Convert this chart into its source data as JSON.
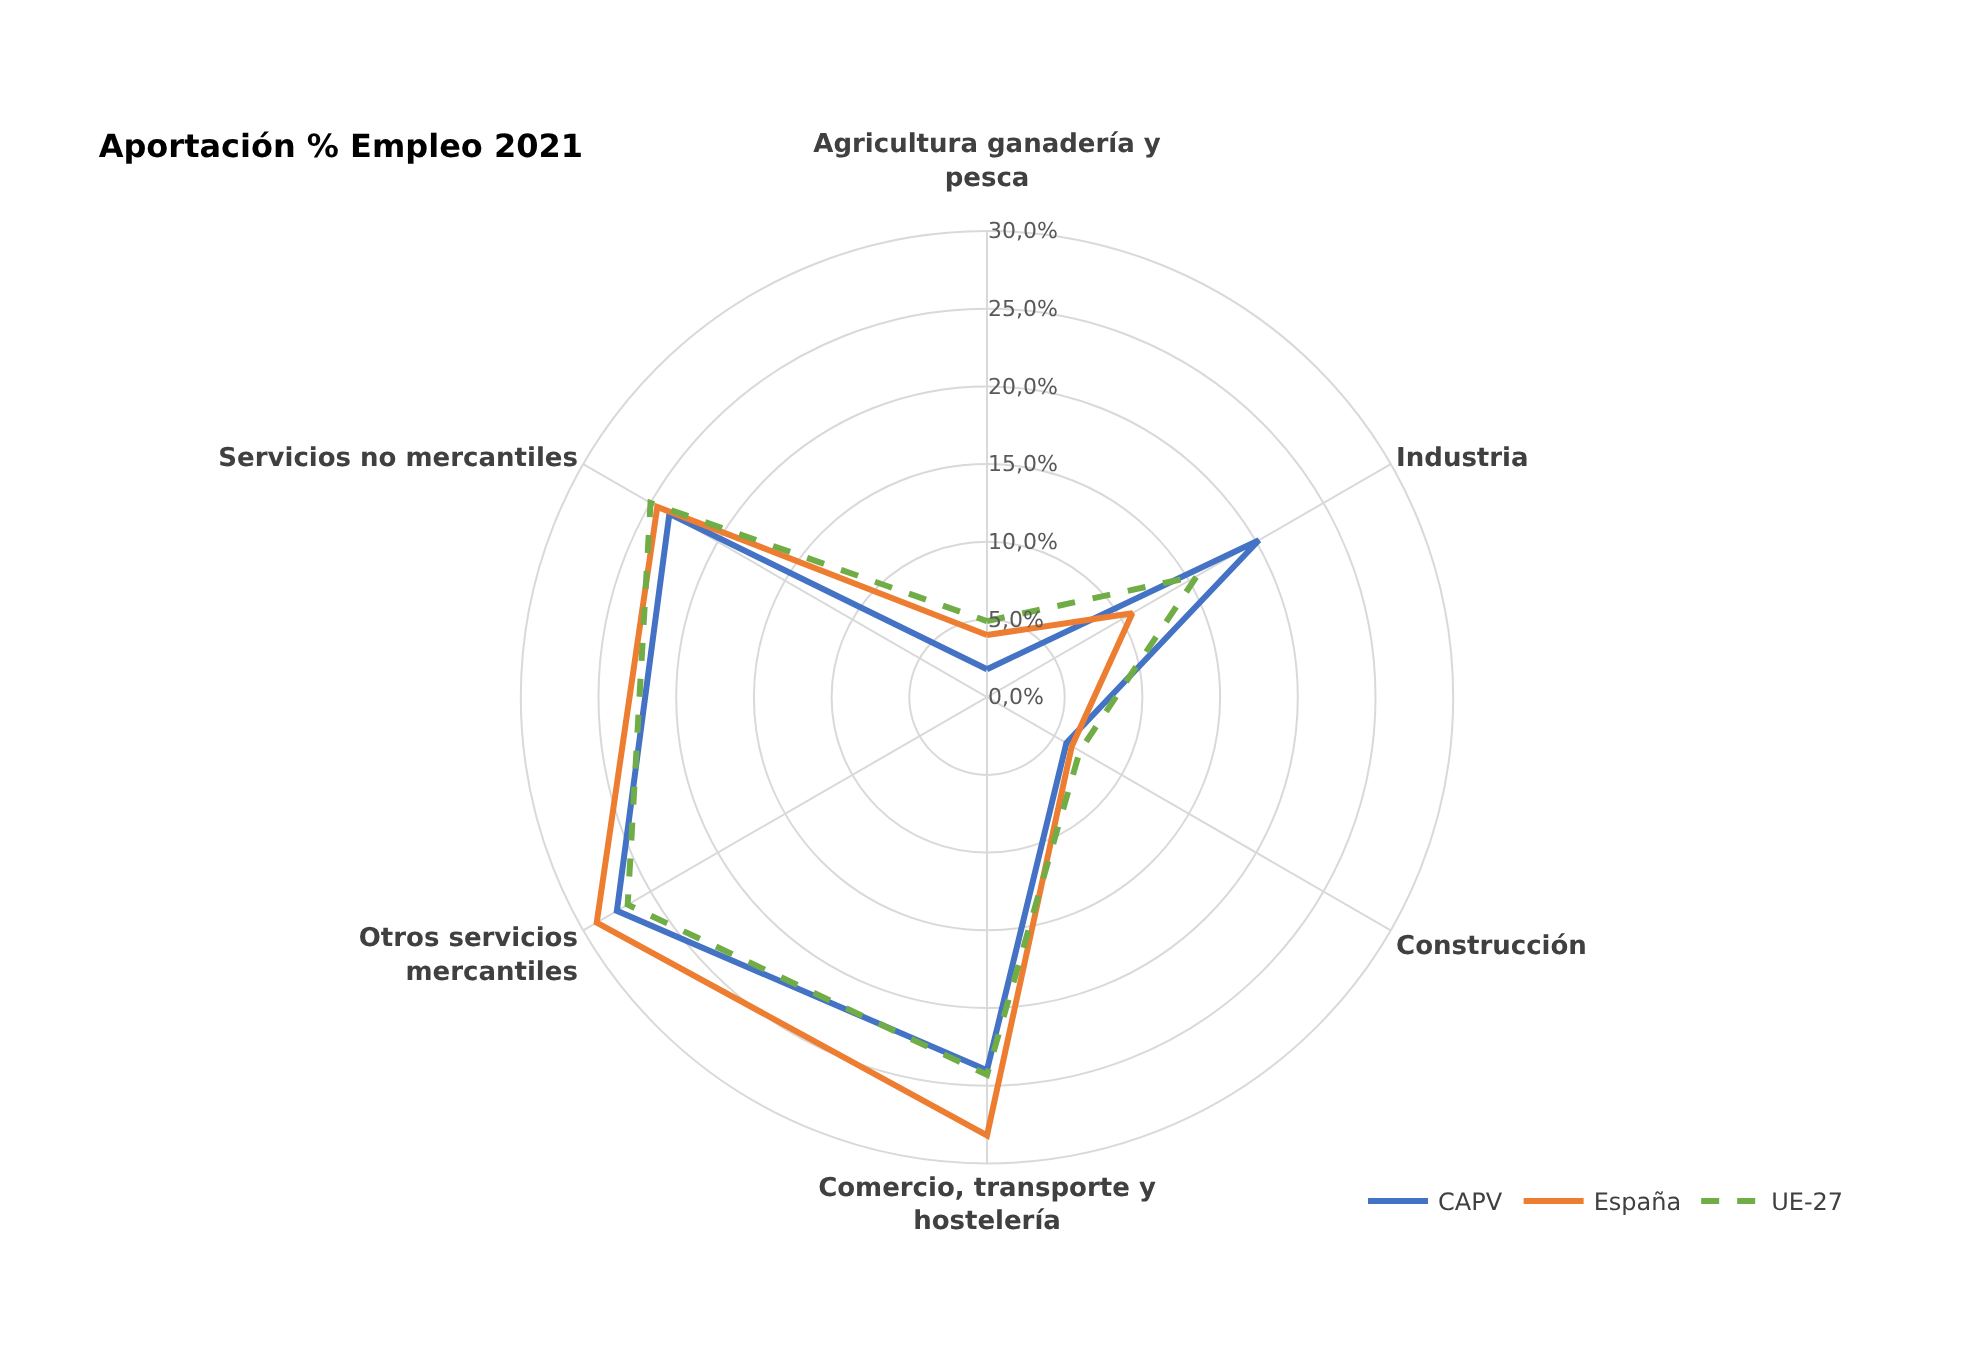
{
  "chart_data": {
    "type": "radar",
    "title": "Aportación % Empleo 2021",
    "categories": [
      "Agricultura ganadería y pesca",
      "Industria",
      "Construcción",
      "Comercio, transporte y hostelería",
      "Otros servicios mercantiles",
      "Servicios no mercantiles"
    ],
    "series": [
      {
        "name": "CAPV",
        "color": "#4472c4",
        "line_style": "solid",
        "values": [
          1.8,
          20.2,
          5.9,
          24.0,
          27.5,
          23.6
        ]
      },
      {
        "name": "España",
        "color": "#ed7d31",
        "line_style": "solid",
        "values": [
          4.0,
          10.8,
          6.3,
          28.2,
          29.0,
          24.5
        ]
      },
      {
        "name": "UE-27",
        "color": "#70ad47",
        "line_style": "dashed",
        "values": [
          4.9,
          15.6,
          6.9,
          24.3,
          26.7,
          25.0
        ]
      }
    ],
    "ylim": [
      0,
      30
    ],
    "yticks": [
      {
        "value": 0,
        "label": "0,0%"
      },
      {
        "value": 5,
        "label": "5,0%"
      },
      {
        "value": 10,
        "label": "10,0%"
      },
      {
        "value": 15,
        "label": "15,0%"
      },
      {
        "value": 20,
        "label": "20,0%"
      },
      {
        "value": 25,
        "label": "25,0%"
      },
      {
        "value": 30,
        "label": "30,0%"
      }
    ],
    "grid": true,
    "legend": "bottom right",
    "marker": "none"
  }
}
